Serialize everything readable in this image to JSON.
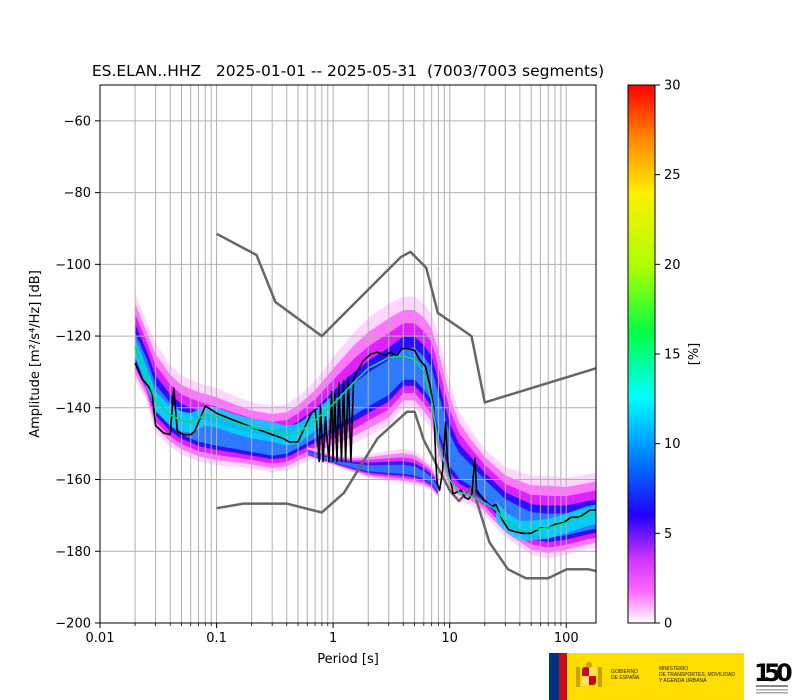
{
  "chart_data": {
    "type": "heatmap",
    "title": "ES.ELAN..HHZ   2025-01-01 -- 2025-05-31  (7003/7003 segments)",
    "xlabel": "Period [s]",
    "ylabel": "Amplitude [m²/s⁴/Hz] [dB]",
    "xscale": "log",
    "xlim": [
      0.01,
      180
    ],
    "ylim": [
      -200,
      -50
    ],
    "xticks": [
      {
        "value": 0.01,
        "label": "0.01"
      },
      {
        "value": 0.1,
        "label": "0.1"
      },
      {
        "value": 1,
        "label": "1"
      },
      {
        "value": 10,
        "label": "10"
      },
      {
        "value": 100,
        "label": "100"
      }
    ],
    "yticks": [
      {
        "value": -60,
        "label": "−60"
      },
      {
        "value": -80,
        "label": "−80"
      },
      {
        "value": -100,
        "label": "−100"
      },
      {
        "value": -120,
        "label": "−120"
      },
      {
        "value": -140,
        "label": "−140"
      },
      {
        "value": -160,
        "label": "−160"
      },
      {
        "value": -180,
        "label": "−180"
      },
      {
        "value": -200,
        "label": "−200"
      }
    ],
    "grid": true,
    "colorbar": {
      "label": "[%]",
      "range": [
        0,
        30
      ],
      "ticks": [
        {
          "value": 0,
          "label": "0"
        },
        {
          "value": 5,
          "label": "5"
        },
        {
          "value": 10,
          "label": "10"
        },
        {
          "value": 15,
          "label": "15"
        },
        {
          "value": 20,
          "label": "20"
        },
        {
          "value": 25,
          "label": "25"
        },
        {
          "value": 30,
          "label": "30"
        }
      ]
    },
    "series": [
      {
        "role": "high noise model",
        "color": "#666666",
        "x": [
          0.1,
          0.22,
          0.32,
          0.8,
          3.8,
          4.6,
          6.3,
          7.9,
          15.4,
          20,
          180
        ],
        "y": [
          -91.5,
          -97.4,
          -110.5,
          -120,
          -98,
          -96.5,
          -101,
          -113.5,
          -120,
          -138.5,
          -129
        ]
      },
      {
        "role": "low noise model",
        "color": "#666666",
        "x": [
          0.1,
          0.17,
          0.4,
          0.8,
          1.24,
          2.4,
          4.3,
          5,
          6,
          10,
          12,
          15.6,
          21.9,
          31.6,
          45,
          70,
          101,
          154,
          180
        ],
        "y": [
          -168,
          -166.7,
          -166.7,
          -169.2,
          -163.7,
          -148.6,
          -141.1,
          -141.1,
          -149,
          -163,
          -166,
          -162,
          -177.5,
          -185,
          -187.5,
          -187.5,
          -185,
          -185,
          -185.5
        ]
      },
      {
        "role": "mode",
        "color": "#000000",
        "x": [
          0.02,
          0.023,
          0.026,
          0.028,
          0.03,
          0.035,
          0.04,
          0.043,
          0.046,
          0.052,
          0.06,
          0.065,
          0.08,
          0.1,
          0.13,
          0.17,
          0.2,
          0.25,
          0.3,
          0.37,
          0.42,
          0.5,
          0.65,
          0.7,
          0.72,
          0.76,
          0.78,
          0.82,
          0.86,
          0.92,
          0.97,
          1.0,
          1.03,
          1.08,
          1.12,
          1.18,
          1.23,
          1.28,
          1.35,
          1.42,
          1.5,
          1.6,
          1.8,
          2.1,
          2.4,
          2.8,
          3.1,
          3.5,
          3.9,
          4.4,
          5.0,
          5.5,
          6.2,
          6.8,
          7.3,
          7.6,
          7.8,
          8.2,
          8.7,
          9.2,
          9.6,
          10.1,
          10.7,
          11.5,
          12.5,
          13.5,
          14.5,
          15.5,
          16,
          16.5,
          17,
          19,
          21,
          23,
          25,
          28,
          32,
          36,
          42,
          50,
          60,
          70,
          80,
          95,
          110,
          130,
          160,
          180
        ],
        "y": [
          -127.5,
          -132,
          -134,
          -136,
          -145,
          -147,
          -147.5,
          -134.5,
          -146.5,
          -147.5,
          -147.5,
          -146.5,
          -139.5,
          -141.5,
          -143,
          -144.5,
          -145.5,
          -146.5,
          -147.5,
          -148.5,
          -149.5,
          -149.5,
          -141.5,
          -140.5,
          -144,
          -155,
          -139.5,
          -155,
          -142.5,
          -155,
          -135.5,
          -155,
          -136,
          -155,
          -133,
          -155,
          -132.5,
          -155,
          -131.5,
          -155,
          -132,
          -130,
          -127,
          -125,
          -124.5,
          -125.5,
          -124.5,
          -125.5,
          -123.5,
          -123.5,
          -124,
          -126.5,
          -128.5,
          -134,
          -140,
          -155,
          -161,
          -163,
          -157.5,
          -144,
          -155,
          -159.5,
          -164,
          -163.5,
          -163,
          -165,
          -165.5,
          -164,
          -158.5,
          -154,
          -163,
          -165,
          -167,
          -167.5,
          -167,
          -171,
          -174,
          -174.5,
          -175,
          -175,
          -173.5,
          -173.5,
          -172.5,
          -172,
          -170.5,
          -170.5,
          -168.5,
          -168.5
        ]
      },
      {
        "role": "mean",
        "color": "#00e070",
        "x": [
          0.02,
          0.025,
          0.03,
          0.04,
          0.05,
          0.06,
          0.08,
          0.1,
          0.15,
          0.2,
          0.3,
          0.4,
          0.5,
          0.7,
          1,
          1.5,
          2,
          3,
          4,
          5,
          6,
          7,
          8,
          10,
          12,
          15,
          20,
          25,
          30,
          40,
          50,
          70,
          100,
          150,
          180
        ],
        "y": [
          -123,
          -131,
          -138,
          -142,
          -143.5,
          -144,
          -142,
          -142.5,
          -144.5,
          -145.5,
          -146.5,
          -147.5,
          -147,
          -143.5,
          -139,
          -133,
          -129,
          -126,
          -125.5,
          -126.5,
          -130,
          -138,
          -150,
          -160,
          -163.5,
          -164.5,
          -166.5,
          -168.5,
          -171.5,
          -174,
          -174,
          -173.5,
          -172,
          -170,
          -169.5
        ]
      }
    ],
    "distribution": [
      {
        "x": [
          0.02,
          0.025,
          0.03,
          0.04,
          0.05,
          0.07,
          0.1,
          0.15,
          0.2,
          0.3,
          0.4,
          0.5,
          0.7,
          1,
          1.5,
          2,
          3,
          4,
          5,
          6,
          7,
          8,
          10,
          12,
          15,
          20,
          30,
          50,
          70,
          100,
          150,
          180
        ],
        "upper": [
          -108,
          -116,
          -122,
          -128,
          -131,
          -133,
          -134.5,
          -137,
          -138.5,
          -139.5,
          -139,
          -137,
          -132.5,
          -126,
          -119,
          -115,
          -111,
          -109,
          -109,
          -111,
          -114,
          -120,
          -133,
          -141,
          -146,
          -151.5,
          -156.5,
          -159,
          -159,
          -159.5,
          -158.5,
          -158
        ],
        "lower": [
          -132,
          -138,
          -147,
          -151,
          -153,
          -155,
          -156,
          -156.5,
          -157,
          -158,
          -157.5,
          -156,
          -154,
          -152,
          -150,
          -148,
          -145,
          -140,
          -140,
          -143,
          -146,
          -155,
          -164,
          -166,
          -167,
          -170,
          -176,
          -181,
          -182,
          -181,
          -179.5,
          -179
        ]
      },
      {
        "x": [
          0.6,
          0.8,
          1,
          1.5,
          2,
          3,
          4,
          5,
          6,
          7,
          8
        ],
        "upper": [
          -151,
          -152,
          -153,
          -153.5,
          -153,
          -152,
          -151.5,
          -152,
          -154,
          -156,
          -160
        ],
        "lower": [
          -153.5,
          -155,
          -156,
          -158,
          -159.5,
          -160.5,
          -161,
          -161.5,
          -162,
          -163,
          -165
        ]
      }
    ]
  }
}
